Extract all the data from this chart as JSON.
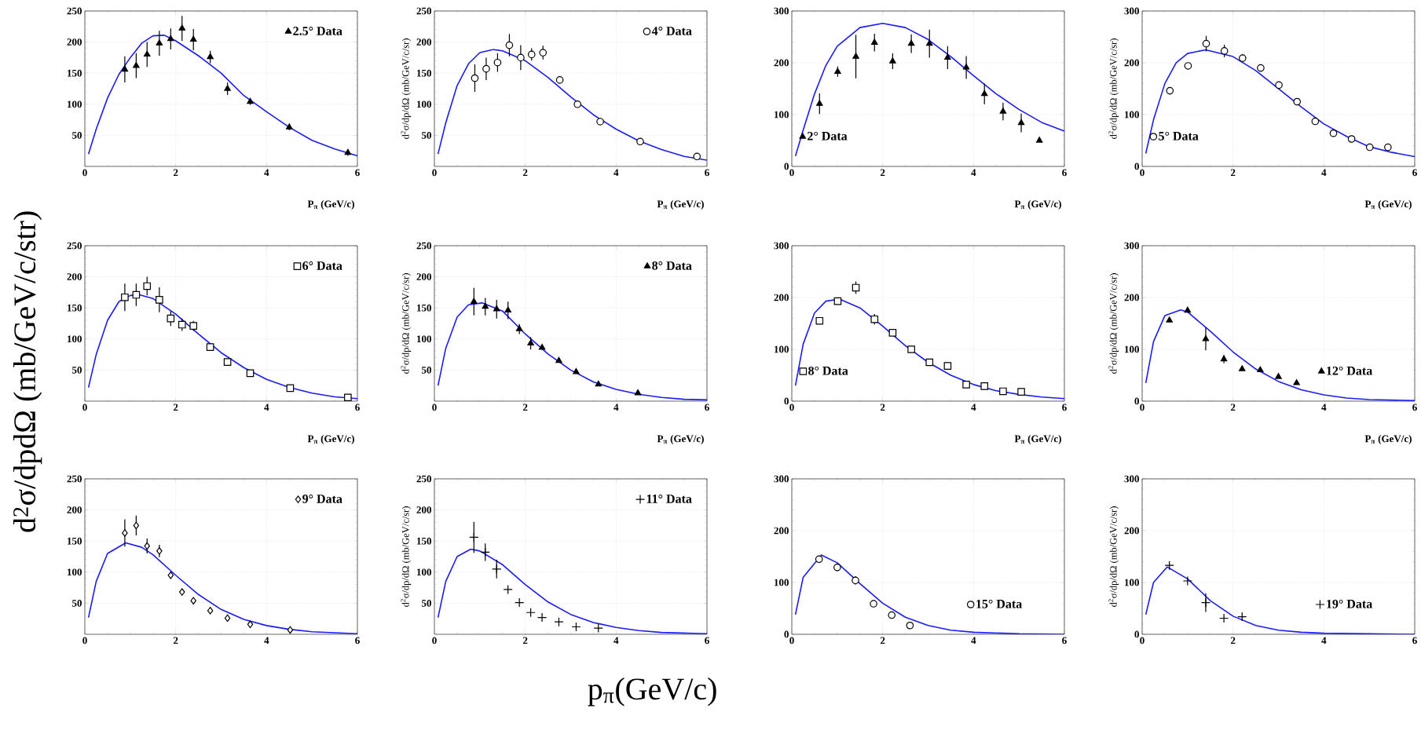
{
  "chart_data": [
    {
      "type": "scatter",
      "xlabel": "P$_{π}$ (GeV/c)",
      "xlim": [
        0,
        6
      ],
      "xticks": [
        0,
        2,
        4,
        6
      ],
      "ylim": [
        0,
        250
      ],
      "yticks": [
        50,
        100,
        150,
        200,
        250
      ],
      "grid": true,
      "legend": "top right",
      "series": [
        {
          "name": "2.5° Data",
          "color": "#000000",
          "marker": "triangle",
          "x": [
            0.88,
            1.13,
            1.37,
            1.64,
            1.89,
            2.14,
            2.39,
            2.76,
            3.14,
            3.64,
            4.5,
            5.79
          ],
          "values": [
            156,
            162,
            180,
            198,
            205,
            222,
            204,
            176,
            125,
            104,
            63,
            22
          ],
          "errors": [
            21,
            20,
            20,
            20,
            17,
            20,
            17,
            10,
            10,
            5,
            5,
            5
          ]
        },
        {
          "type": "line",
          "color": "#1a1aff",
          "x": [
            0.08,
            0.25,
            0.5,
            0.75,
            1,
            1.25,
            1.5,
            1.75,
            2,
            2.5,
            3,
            3.5,
            4,
            4.5,
            5,
            5.5,
            6
          ],
          "values": [
            20,
            60,
            110,
            148,
            175,
            198,
            210,
            211,
            202,
            178,
            150,
            114,
            88,
            63,
            42,
            28,
            17
          ]
        }
      ]
    },
    {
      "type": "scatter",
      "xlabel": "P$_{π}$ (GeV/c)",
      "ylabel": "d$^{2}$σ/dp/dΩ (mb/GeV/c/sr)",
      "xlim": [
        0,
        6
      ],
      "xticks": [
        0,
        2,
        4,
        6
      ],
      "ylim": [
        0,
        250
      ],
      "yticks": [
        50,
        100,
        150,
        200,
        250
      ],
      "grid": true,
      "legend": "top right",
      "series": [
        {
          "name": "4° Data",
          "color": "#000000",
          "marker": "circle",
          "x": [
            0.89,
            1.14,
            1.39,
            1.65,
            1.9,
            2.14,
            2.39,
            2.76,
            3.15,
            3.65,
            4.53,
            5.78
          ],
          "values": [
            142,
            157,
            167,
            195,
            175,
            180,
            183,
            139,
            100,
            72,
            40,
            16
          ],
          "errors": [
            22,
            18,
            15,
            18,
            20,
            10,
            11,
            null,
            null,
            null,
            null,
            null
          ]
        },
        {
          "type": "line",
          "color": "#1a1aff",
          "x": [
            0.08,
            0.25,
            0.5,
            0.75,
            1,
            1.3,
            1.5,
            2,
            2.5,
            3,
            3.5,
            4,
            4.5,
            5,
            5.5,
            6
          ],
          "values": [
            20,
            70,
            130,
            165,
            183,
            188,
            186,
            170,
            143,
            112,
            83,
            60,
            41,
            27,
            16,
            10
          ]
        }
      ]
    },
    {
      "type": "scatter",
      "xlabel": "P$_{π}$ (GeV/c)",
      "xlim": [
        0,
        6
      ],
      "xticks": [
        0,
        2,
        4,
        6
      ],
      "ylim": [
        0,
        300
      ],
      "yticks": [
        0,
        100,
        200,
        300
      ],
      "grid": true,
      "legend": "bottom left",
      "series": [
        {
          "name": "2° Data",
          "color": "#000000",
          "marker": "triangle",
          "x": [
            0.61,
            1.01,
            1.41,
            1.82,
            2.22,
            2.63,
            3.03,
            3.43,
            3.84,
            4.24,
            4.65,
            5.05,
            5.45
          ],
          "values": [
            121,
            183,
            212,
            239,
            203,
            237,
            237,
            210,
            191,
            140,
            106,
            84,
            50
          ],
          "errors": [
            20,
            10,
            42,
            17,
            15,
            18,
            27,
            22,
            22,
            20,
            17,
            18,
            null
          ]
        },
        {
          "type": "line",
          "color": "#1a1aff",
          "x": [
            0.08,
            0.25,
            0.5,
            0.75,
            1,
            1.5,
            2,
            2.5,
            3,
            3.5,
            4,
            4.5,
            5,
            5.5,
            6
          ],
          "values": [
            20,
            70,
            140,
            195,
            232,
            268,
            276,
            268,
            245,
            212,
            175,
            140,
            110,
            85,
            68
          ]
        }
      ]
    },
    {
      "type": "scatter",
      "xlabel": "P$_{π}$ (GeV/c)",
      "ylabel": "d$^{2}$σ/dp/dΩ (mb/GeV/c/sr)",
      "xlim": [
        0,
        6
      ],
      "xticks": [
        0,
        2,
        4,
        6
      ],
      "ylim": [
        0,
        300
      ],
      "yticks": [
        0,
        100,
        200,
        300
      ],
      "grid": true,
      "legend": "bottom left",
      "series": [
        {
          "name": "5° Data",
          "color": "#000000",
          "marker": "circle",
          "x": [
            0.61,
            1.01,
            1.41,
            1.81,
            2.21,
            2.61,
            3.01,
            3.41,
            3.81,
            4.21,
            4.61,
            5.01,
            5.41
          ],
          "values": [
            146,
            194,
            237,
            223,
            209,
            190,
            157,
            125,
            87,
            64,
            53,
            37,
            37
          ],
          "errors": [
            null,
            null,
            15,
            12,
            8,
            null,
            null,
            null,
            null,
            null,
            null,
            null,
            null
          ]
        },
        {
          "type": "line",
          "color": "#1a1aff",
          "x": [
            0.08,
            0.25,
            0.5,
            0.75,
            1,
            1.4,
            2,
            2.5,
            3,
            3.5,
            4,
            4.5,
            5,
            5.5,
            6
          ],
          "values": [
            25,
            90,
            160,
            200,
            218,
            225,
            212,
            185,
            150,
            115,
            82,
            58,
            38,
            27,
            19
          ]
        }
      ]
    },
    {
      "type": "scatter",
      "xlabel": "P$_{π}$ (GeV/c)",
      "ylabel": "d$^{2}$σ/dpdΩ (mb/GeV/c/str)",
      "xlim": [
        0,
        6
      ],
      "xticks": [
        0,
        2,
        4,
        6
      ],
      "ylim": [
        0,
        250
      ],
      "yticks": [
        50,
        100,
        150,
        200,
        250
      ],
      "grid": true,
      "legend": "top right",
      "series": [
        {
          "name": "6° Data",
          "color": "#000000",
          "marker": "square",
          "x": [
            0.88,
            1.13,
            1.37,
            1.64,
            1.89,
            2.14,
            2.39,
            2.76,
            3.14,
            3.64,
            4.52,
            5.79
          ],
          "values": [
            167,
            171,
            185,
            163,
            133,
            123,
            121,
            87,
            63,
            45,
            21,
            6
          ],
          "errors": [
            22,
            18,
            15,
            20,
            12,
            10,
            8,
            null,
            null,
            null,
            null,
            null
          ]
        },
        {
          "type": "line",
          "color": "#1a1aff",
          "x": [
            0.08,
            0.25,
            0.5,
            0.75,
            1,
            1.2,
            1.5,
            2,
            2.5,
            3,
            3.5,
            4,
            4.5,
            5,
            5.5,
            6
          ],
          "values": [
            22,
            75,
            130,
            160,
            170,
            171,
            165,
            140,
            108,
            78,
            54,
            35,
            22,
            13,
            7,
            4
          ]
        }
      ]
    },
    {
      "type": "scatter",
      "xlabel": "P$_{π}$ (GeV/c)",
      "ylabel": "d$^{2}$σ/dp/dΩ (mb/GeV/c/sr)",
      "xlim": [
        0,
        6
      ],
      "xticks": [
        0,
        2,
        4,
        6
      ],
      "ylim": [
        0,
        250
      ],
      "yticks": [
        50,
        100,
        150,
        200,
        250
      ],
      "grid": true,
      "legend": "top right",
      "series": [
        {
          "name": "8° Data",
          "color": "#000000",
          "marker": "triangle",
          "x": [
            0.87,
            1.12,
            1.37,
            1.62,
            1.87,
            2.12,
            2.37,
            2.74,
            3.12,
            3.61,
            4.48
          ],
          "values": [
            160,
            152,
            148,
            146,
            116,
            93,
            86,
            65,
            47,
            27,
            13
          ],
          "errors": [
            22,
            14,
            15,
            14,
            8,
            10,
            null,
            null,
            null,
            null,
            null
          ]
        },
        {
          "type": "line",
          "color": "#1a1aff",
          "x": [
            0.08,
            0.25,
            0.5,
            0.75,
            1.05,
            1.5,
            2,
            2.5,
            3,
            3.5,
            4,
            4.5,
            5,
            5.5,
            6
          ],
          "values": [
            25,
            85,
            135,
            155,
            158,
            145,
            108,
            76,
            50,
            31,
            19,
            11,
            6,
            3,
            2
          ]
        }
      ]
    },
    {
      "type": "scatter",
      "xlabel": "P$_{π}$ (GeV/c)",
      "xlim": [
        0,
        6
      ],
      "xticks": [
        0,
        2,
        4,
        6
      ],
      "ylim": [
        0,
        300
      ],
      "yticks": [
        0,
        100,
        200,
        300
      ],
      "grid": true,
      "legend": "bottom left",
      "series": [
        {
          "name": "8° Data",
          "color": "#000000",
          "marker": "square",
          "x": [
            0.61,
            1.01,
            1.41,
            1.82,
            2.22,
            2.63,
            3.03,
            3.43,
            3.84,
            4.24,
            4.65,
            5.05
          ],
          "values": [
            155,
            193,
            219,
            158,
            132,
            100,
            75,
            68,
            32,
            29,
            19,
            18
          ],
          "errors": [
            null,
            null,
            12,
            10,
            null,
            null,
            null,
            null,
            null,
            null,
            null,
            null
          ]
        },
        {
          "type": "line",
          "color": "#1a1aff",
          "x": [
            0.08,
            0.25,
            0.5,
            0.75,
            1.05,
            1.5,
            2,
            2.5,
            3,
            3.5,
            4,
            4.5,
            5,
            5.5,
            6
          ],
          "values": [
            30,
            110,
            170,
            193,
            197,
            180,
            145,
            107,
            75,
            50,
            32,
            20,
            13,
            8,
            5
          ]
        }
      ]
    },
    {
      "type": "scatter",
      "xlabel": "P$_{π}$ (GeV/c)",
      "ylabel": "d$^{2}$σ/dp/dΩ (mb/GeV/c/sr)",
      "xlim": [
        0,
        6
      ],
      "xticks": [
        0,
        2,
        4,
        6
      ],
      "ylim": [
        0,
        300
      ],
      "yticks": [
        0,
        100,
        200,
        300
      ],
      "grid": true,
      "legend": "bottom right",
      "series": [
        {
          "name": "12° Data",
          "color": "#000000",
          "marker": "triangle",
          "x": [
            0.6,
            1.0,
            1.4,
            1.8,
            2.2,
            2.6,
            3.0,
            3.4
          ],
          "values": [
            156,
            175,
            120,
            81,
            62,
            60,
            47,
            35
          ],
          "errors": [
            null,
            null,
            22,
            8,
            null,
            null,
            null,
            null
          ]
        },
        {
          "type": "line",
          "color": "#1a1aff",
          "x": [
            0.08,
            0.25,
            0.5,
            0.85,
            1,
            1.5,
            2,
            2.5,
            3,
            3.5,
            4,
            4.5,
            5,
            6
          ],
          "values": [
            35,
            115,
            165,
            176,
            172,
            135,
            95,
            62,
            38,
            22,
            12,
            6,
            3,
            1
          ]
        }
      ]
    },
    {
      "type": "scatter",
      "xlim": [
        0,
        6
      ],
      "xticks": [
        0,
        2,
        4,
        6
      ],
      "ylim": [
        0,
        250
      ],
      "yticks": [
        50,
        100,
        150,
        200,
        250
      ],
      "grid": true,
      "legend": "top right",
      "series": [
        {
          "name": "9° Data",
          "color": "#000000",
          "marker": "diamond",
          "x": [
            0.88,
            1.13,
            1.37,
            1.64,
            1.89,
            2.14,
            2.39,
            2.76,
            3.14,
            3.64,
            4.52
          ],
          "values": [
            163,
            175,
            142,
            134,
            95,
            68,
            54,
            38,
            26,
            16,
            7
          ],
          "errors": [
            22,
            16,
            12,
            10,
            null,
            null,
            null,
            null,
            null,
            null,
            null
          ]
        },
        {
          "type": "line",
          "color": "#1a1aff",
          "x": [
            0.08,
            0.25,
            0.5,
            0.9,
            1.25,
            1.5,
            2,
            2.5,
            3,
            3.5,
            4,
            4.5,
            5,
            6
          ],
          "values": [
            27,
            85,
            130,
            147,
            140,
            128,
            95,
            64,
            40,
            24,
            14,
            8,
            4,
            1
          ]
        }
      ]
    },
    {
      "type": "scatter",
      "xlabel": "p$_{π}$(GeV/c)",
      "ylabel": "d$^{2}$σ/dp/dΩ (mb/GeV/c/sr)",
      "xlim": [
        0,
        6
      ],
      "xticks": [
        0,
        2,
        4,
        6
      ],
      "ylim": [
        0,
        250
      ],
      "yticks": [
        50,
        100,
        150,
        200,
        250
      ],
      "grid": true,
      "legend": "top right",
      "series": [
        {
          "name": "11° Data",
          "color": "#000000",
          "marker": "cross",
          "x": [
            0.87,
            1.12,
            1.37,
            1.62,
            1.87,
            2.12,
            2.37,
            2.74,
            3.12,
            3.61
          ],
          "values": [
            156,
            132,
            105,
            72,
            51,
            35,
            27,
            20,
            12,
            10
          ],
          "errors": [
            25,
            14,
            15,
            null,
            null,
            null,
            null,
            null,
            null,
            null
          ]
        },
        {
          "type": "line",
          "color": "#1a1aff",
          "x": [
            0.08,
            0.25,
            0.5,
            0.8,
            1,
            1.5,
            2,
            2.5,
            3,
            3.5,
            4,
            4.5,
            5,
            6
          ],
          "values": [
            27,
            85,
            125,
            137,
            134,
            112,
            80,
            52,
            32,
            19,
            11,
            6,
            3,
            1
          ]
        }
      ]
    },
    {
      "type": "scatter",
      "xlim": [
        0,
        6
      ],
      "xticks": [
        0,
        2,
        4,
        6
      ],
      "ylim": [
        0,
        300
      ],
      "yticks": [
        0,
        100,
        200,
        300
      ],
      "grid": true,
      "legend": "bottom right",
      "series": [
        {
          "name": "15° Data",
          "color": "#000000",
          "marker": "circle",
          "x": [
            0.6,
            1.0,
            1.4,
            1.8,
            2.2,
            2.6
          ],
          "values": [
            145,
            129,
            104,
            59,
            37,
            17
          ],
          "errors": [
            null,
            null,
            8,
            null,
            null,
            null
          ]
        },
        {
          "type": "line",
          "color": "#1a1aff",
          "x": [
            0.08,
            0.25,
            0.65,
            1,
            1.5,
            2,
            2.5,
            3,
            3.5,
            4,
            5,
            6
          ],
          "values": [
            38,
            110,
            153,
            138,
            98,
            60,
            33,
            17,
            8,
            4,
            1,
            0
          ]
        }
      ]
    },
    {
      "type": "scatter",
      "ylabel": "d$^{2}$σ/dp/dΩ (mb/GeV/c/sr)",
      "xlim": [
        0,
        6
      ],
      "xticks": [
        0,
        2,
        4,
        6
      ],
      "ylim": [
        0,
        300
      ],
      "yticks": [
        0,
        100,
        200,
        300
      ],
      "grid": true,
      "legend": "bottom right",
      "series": [
        {
          "name": "19° Data",
          "color": "#000000",
          "marker": "cross",
          "x": [
            0.6,
            1.0,
            1.4,
            1.8,
            2.2
          ],
          "values": [
            133,
            103,
            61,
            31,
            34
          ],
          "errors": [
            null,
            null,
            18,
            null,
            null
          ]
        },
        {
          "type": "line",
          "color": "#1a1aff",
          "x": [
            0.08,
            0.25,
            0.55,
            1,
            1.5,
            2,
            2.5,
            3,
            3.5,
            4,
            5,
            6
          ],
          "values": [
            38,
            100,
            130,
            107,
            65,
            35,
            17,
            8,
            4,
            2,
            1,
            0
          ]
        }
      ]
    }
  ]
}
